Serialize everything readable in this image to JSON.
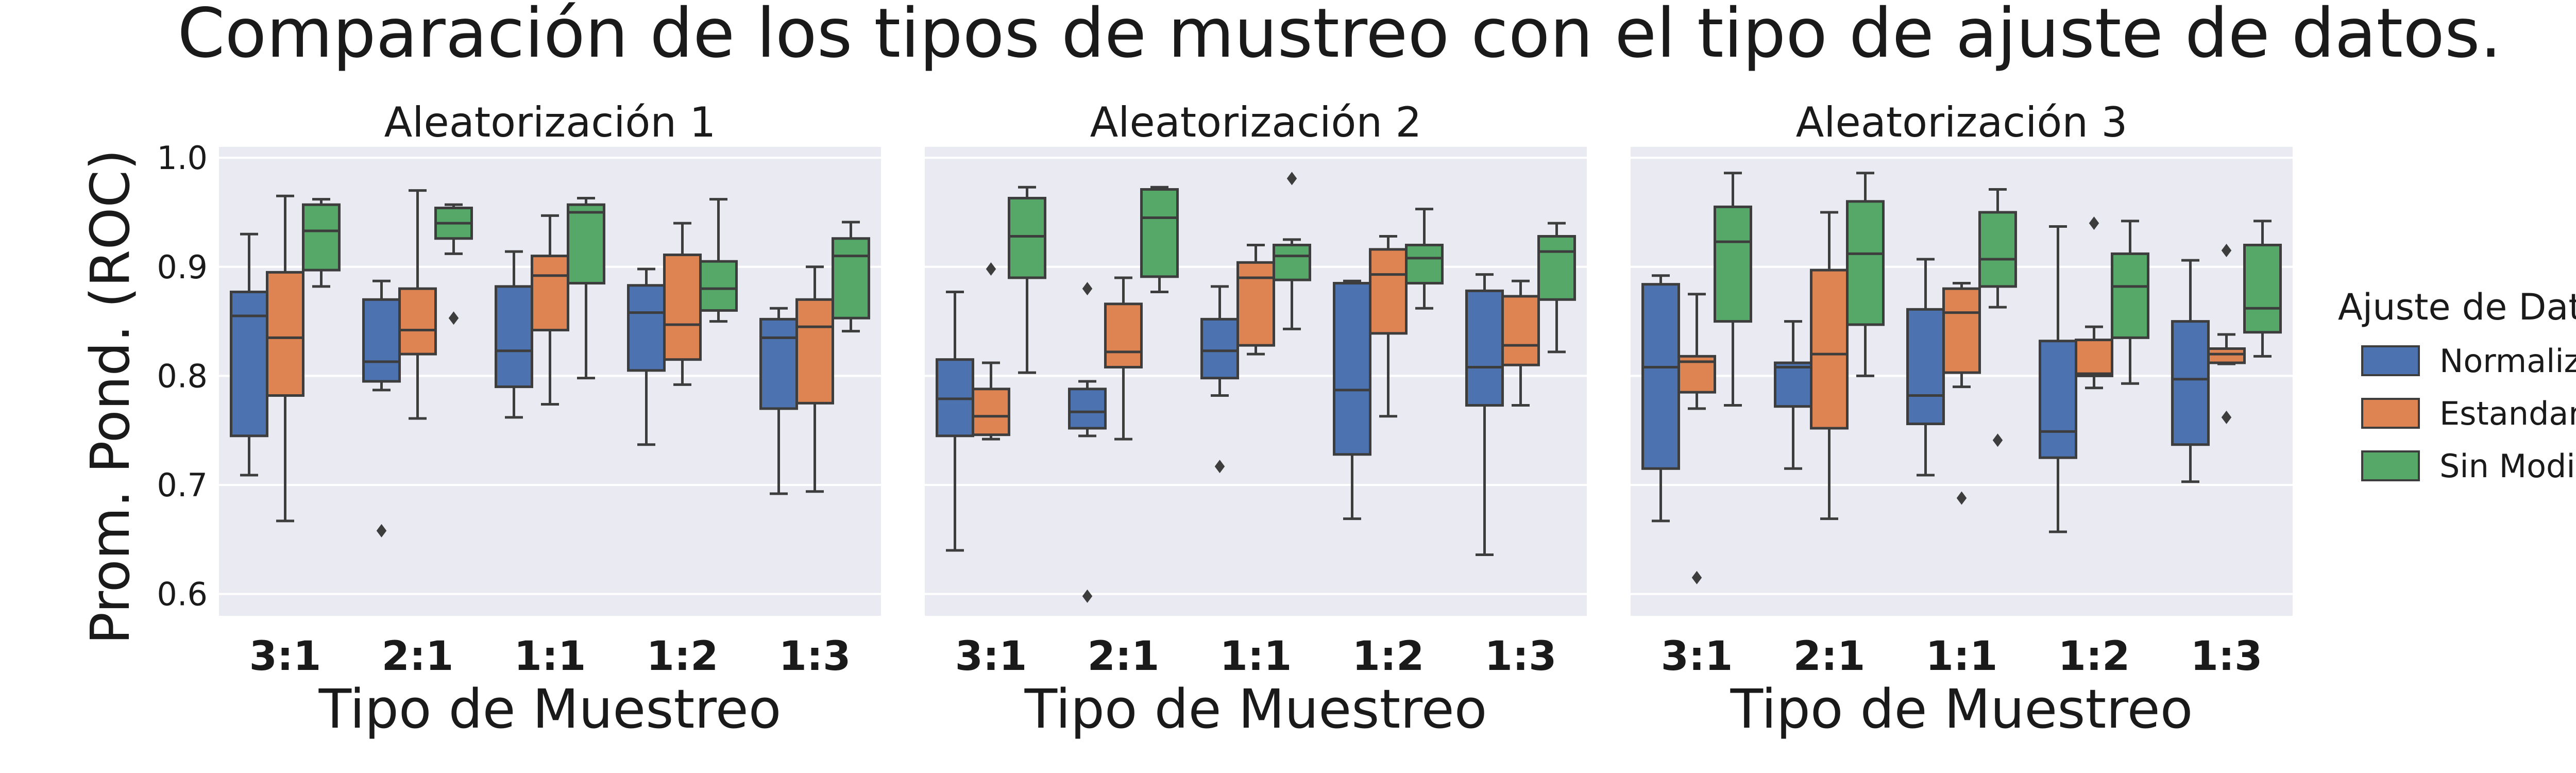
{
  "chart_data": {
    "type": "box",
    "title": "Comparación de los tipos de mustreo con el tipo de ajuste de datos.",
    "ylabel": "Prom. Pond. (ROC)",
    "xlabel": "Tipo de Muestreo",
    "categories": [
      "3:1",
      "2:1",
      "1:1",
      "1:2",
      "1:3"
    ],
    "ylim": [
      0.58,
      1.01
    ],
    "yticks": [
      0.6,
      0.7,
      0.8,
      0.9,
      1.0
    ],
    "ytick_labels": [
      "0.6",
      "0.7",
      "0.8",
      "0.9",
      "1.0"
    ],
    "grid": true,
    "legend": {
      "title": "Ajuste de Datos",
      "placement": "right",
      "entries": [
        "Normalizados",
        "Estandarizados",
        "Sin Modificación"
      ]
    },
    "colors": {
      "Normalizados": "#4c72b0",
      "Estandarizados": "#dd8452",
      "Sin Modificación": "#55a868",
      "background": "#eaeaf2",
      "grid": "#ffffff",
      "lines": "#3d3d3d"
    },
    "panels": [
      {
        "title": "Aleatorización 1",
        "series": [
          {
            "name": "Normalizados",
            "boxes": [
              {
                "category": "3:1",
                "whislo": 0.709,
                "q1": 0.745,
                "med": 0.855,
                "q3": 0.877,
                "whishi": 0.93,
                "fliers": []
              },
              {
                "category": "2:1",
                "whislo": 0.787,
                "q1": 0.795,
                "med": 0.813,
                "q3": 0.87,
                "whishi": 0.887,
                "fliers": [
                  0.658
                ]
              },
              {
                "category": "1:1",
                "whislo": 0.762,
                "q1": 0.79,
                "med": 0.823,
                "q3": 0.882,
                "whishi": 0.914,
                "fliers": []
              },
              {
                "category": "1:2",
                "whislo": 0.737,
                "q1": 0.805,
                "med": 0.858,
                "q3": 0.883,
                "whishi": 0.898,
                "fliers": []
              },
              {
                "category": "1:3",
                "whislo": 0.692,
                "q1": 0.77,
                "med": 0.835,
                "q3": 0.852,
                "whishi": 0.862,
                "fliers": []
              }
            ]
          },
          {
            "name": "Estandarizados",
            "boxes": [
              {
                "category": "3:1",
                "whislo": 0.667,
                "q1": 0.782,
                "med": 0.835,
                "q3": 0.895,
                "whishi": 0.965,
                "fliers": []
              },
              {
                "category": "2:1",
                "whislo": 0.761,
                "q1": 0.82,
                "med": 0.842,
                "q3": 0.88,
                "whishi": 0.97,
                "fliers": []
              },
              {
                "category": "1:1",
                "whislo": 0.774,
                "q1": 0.842,
                "med": 0.892,
                "q3": 0.91,
                "whishi": 0.947,
                "fliers": []
              },
              {
                "category": "1:2",
                "whislo": 0.792,
                "q1": 0.815,
                "med": 0.847,
                "q3": 0.911,
                "whishi": 0.94,
                "fliers": []
              },
              {
                "category": "1:3",
                "whislo": 0.694,
                "q1": 0.775,
                "med": 0.845,
                "q3": 0.87,
                "whishi": 0.9,
                "fliers": []
              }
            ]
          },
          {
            "name": "Sin Modificación",
            "boxes": [
              {
                "category": "3:1",
                "whislo": 0.882,
                "q1": 0.897,
                "med": 0.933,
                "q3": 0.957,
                "whishi": 0.962,
                "fliers": []
              },
              {
                "category": "2:1",
                "whislo": 0.912,
                "q1": 0.926,
                "med": 0.94,
                "q3": 0.954,
                "whishi": 0.957,
                "fliers": [
                  0.853
                ]
              },
              {
                "category": "1:1",
                "whislo": 0.798,
                "q1": 0.885,
                "med": 0.95,
                "q3": 0.957,
                "whishi": 0.963,
                "fliers": []
              },
              {
                "category": "1:2",
                "whislo": 0.85,
                "q1": 0.86,
                "med": 0.88,
                "q3": 0.905,
                "whishi": 0.962,
                "fliers": []
              },
              {
                "category": "1:3",
                "whislo": 0.841,
                "q1": 0.853,
                "med": 0.91,
                "q3": 0.926,
                "whishi": 0.941,
                "fliers": []
              }
            ]
          }
        ]
      },
      {
        "title": "Aleatorización 2",
        "series": [
          {
            "name": "Normalizados",
            "boxes": [
              {
                "category": "3:1",
                "whislo": 0.64,
                "q1": 0.745,
                "med": 0.779,
                "q3": 0.815,
                "whishi": 0.877,
                "fliers": []
              },
              {
                "category": "2:1",
                "whislo": 0.745,
                "q1": 0.752,
                "med": 0.767,
                "q3": 0.788,
                "whishi": 0.795,
                "fliers": [
                  0.88,
                  0.598
                ]
              },
              {
                "category": "1:1",
                "whislo": 0.782,
                "q1": 0.798,
                "med": 0.823,
                "q3": 0.852,
                "whishi": 0.882,
                "fliers": [
                  0.717
                ]
              },
              {
                "category": "1:2",
                "whislo": 0.669,
                "q1": 0.728,
                "med": 0.787,
                "q3": 0.885,
                "whishi": 0.887,
                "fliers": []
              },
              {
                "category": "1:3",
                "whislo": 0.636,
                "q1": 0.773,
                "med": 0.808,
                "q3": 0.878,
                "whishi": 0.893,
                "fliers": []
              }
            ]
          },
          {
            "name": "Estandarizados",
            "boxes": [
              {
                "category": "3:1",
                "whislo": 0.742,
                "q1": 0.746,
                "med": 0.763,
                "q3": 0.788,
                "whishi": 0.812,
                "fliers": [
                  0.898
                ]
              },
              {
                "category": "2:1",
                "whislo": 0.742,
                "q1": 0.808,
                "med": 0.822,
                "q3": 0.866,
                "whishi": 0.89,
                "fliers": []
              },
              {
                "category": "1:1",
                "whislo": 0.82,
                "q1": 0.828,
                "med": 0.89,
                "q3": 0.904,
                "whishi": 0.92,
                "fliers": []
              },
              {
                "category": "1:2",
                "whislo": 0.763,
                "q1": 0.839,
                "med": 0.893,
                "q3": 0.916,
                "whishi": 0.928,
                "fliers": []
              },
              {
                "category": "1:3",
                "whislo": 0.773,
                "q1": 0.81,
                "med": 0.828,
                "q3": 0.873,
                "whishi": 0.887,
                "fliers": []
              }
            ]
          },
          {
            "name": "Sin Modificación",
            "boxes": [
              {
                "category": "3:1",
                "whislo": 0.803,
                "q1": 0.89,
                "med": 0.928,
                "q3": 0.963,
                "whishi": 0.973,
                "fliers": []
              },
              {
                "category": "2:1",
                "whislo": 0.877,
                "q1": 0.891,
                "med": 0.945,
                "q3": 0.971,
                "whishi": 0.973,
                "fliers": []
              },
              {
                "category": "1:1",
                "whislo": 0.843,
                "q1": 0.888,
                "med": 0.91,
                "q3": 0.92,
                "whishi": 0.925,
                "fliers": [
                  0.981
                ]
              },
              {
                "category": "1:2",
                "whislo": 0.862,
                "q1": 0.885,
                "med": 0.908,
                "q3": 0.92,
                "whishi": 0.953,
                "fliers": []
              },
              {
                "category": "1:3",
                "whislo": 0.822,
                "q1": 0.87,
                "med": 0.914,
                "q3": 0.928,
                "whishi": 0.94,
                "fliers": []
              }
            ]
          }
        ]
      },
      {
        "title": "Aleatorización 3",
        "series": [
          {
            "name": "Normalizados",
            "boxes": [
              {
                "category": "3:1",
                "whislo": 0.667,
                "q1": 0.715,
                "med": 0.808,
                "q3": 0.884,
                "whishi": 0.892,
                "fliers": []
              },
              {
                "category": "2:1",
                "whislo": 0.715,
                "q1": 0.772,
                "med": 0.808,
                "q3": 0.812,
                "whishi": 0.85,
                "fliers": []
              },
              {
                "category": "1:1",
                "whislo": 0.709,
                "q1": 0.756,
                "med": 0.782,
                "q3": 0.861,
                "whishi": 0.907,
                "fliers": []
              },
              {
                "category": "1:2",
                "whislo": 0.657,
                "q1": 0.725,
                "med": 0.749,
                "q3": 0.832,
                "whishi": 0.937,
                "fliers": []
              },
              {
                "category": "1:3",
                "whislo": 0.703,
                "q1": 0.737,
                "med": 0.797,
                "q3": 0.85,
                "whishi": 0.906,
                "fliers": []
              }
            ]
          },
          {
            "name": "Estandarizados",
            "boxes": [
              {
                "category": "3:1",
                "whislo": 0.77,
                "q1": 0.785,
                "med": 0.813,
                "q3": 0.818,
                "whishi": 0.875,
                "fliers": [
                  0.615
                ]
              },
              {
                "category": "2:1",
                "whislo": 0.669,
                "q1": 0.752,
                "med": 0.82,
                "q3": 0.897,
                "whishi": 0.95,
                "fliers": []
              },
              {
                "category": "1:1",
                "whislo": 0.79,
                "q1": 0.803,
                "med": 0.858,
                "q3": 0.88,
                "whishi": 0.885,
                "fliers": [
                  0.688
                ]
              },
              {
                "category": "1:2",
                "whislo": 0.789,
                "q1": 0.8,
                "med": 0.802,
                "q3": 0.833,
                "whishi": 0.845,
                "fliers": [
                  0.94
                ]
              },
              {
                "category": "1:3",
                "whislo": 0.811,
                "q1": 0.812,
                "med": 0.82,
                "q3": 0.825,
                "whishi": 0.838,
                "fliers": [
                  0.915,
                  0.762
                ]
              }
            ]
          },
          {
            "name": "Sin Modificación",
            "boxes": [
              {
                "category": "3:1",
                "whislo": 0.773,
                "q1": 0.85,
                "med": 0.923,
                "q3": 0.955,
                "whishi": 0.986,
                "fliers": []
              },
              {
                "category": "2:1",
                "whislo": 0.8,
                "q1": 0.847,
                "med": 0.912,
                "q3": 0.96,
                "whishi": 0.986,
                "fliers": []
              },
              {
                "category": "1:1",
                "whislo": 0.863,
                "q1": 0.882,
                "med": 0.907,
                "q3": 0.95,
                "whishi": 0.971,
                "fliers": [
                  0.741
                ]
              },
              {
                "category": "1:2",
                "whislo": 0.793,
                "q1": 0.835,
                "med": 0.882,
                "q3": 0.912,
                "whishi": 0.942,
                "fliers": []
              },
              {
                "category": "1:3",
                "whislo": 0.818,
                "q1": 0.84,
                "med": 0.862,
                "q3": 0.92,
                "whishi": 0.942,
                "fliers": []
              }
            ]
          }
        ]
      }
    ]
  }
}
